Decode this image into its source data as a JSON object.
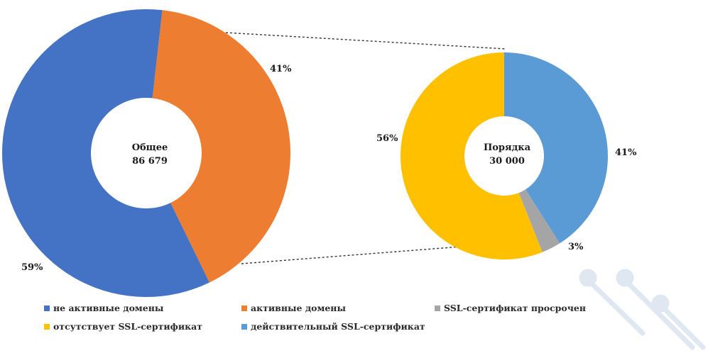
{
  "colors": {
    "inactive": "#4472C4",
    "active": "#ED7D31",
    "expired": "#A5A5A5",
    "missing": "#FFC000",
    "valid": "#5B9BD5",
    "connector": "#333333"
  },
  "chart_data": [
    {
      "type": "pie",
      "center_label": [
        "Общее",
        "86 679"
      ],
      "slices": [
        {
          "name": "не активные домены",
          "value": 59,
          "label": "59%",
          "color": "#4472C4"
        },
        {
          "name": "активные домены",
          "value": 41,
          "label": "41%",
          "color": "#ED7D31"
        }
      ]
    },
    {
      "type": "pie",
      "center_label": [
        "Порядка",
        "30 000"
      ],
      "slices": [
        {
          "name": "действительный SSL-сертификат",
          "value": 41,
          "label": "41%",
          "color": "#5B9BD5"
        },
        {
          "name": "SSL-сертификат просрочен",
          "value": 3,
          "label": "3%",
          "color": "#A5A5A5"
        },
        {
          "name": "отсутствует SSL-сертификат",
          "value": 56,
          "label": "56%",
          "color": "#FFC000"
        }
      ]
    }
  ],
  "legend": [
    {
      "label": "не активные домены",
      "color": "#4472C4"
    },
    {
      "label": "активные домены",
      "color": "#ED7D31"
    },
    {
      "label": "SSL-сертификат просрочен",
      "color": "#A5A5A5"
    },
    {
      "label": "отсутствует SSL-сертификат",
      "color": "#FFC000"
    },
    {
      "label": "действительный SSL-сертификат",
      "color": "#5B9BD5"
    }
  ]
}
